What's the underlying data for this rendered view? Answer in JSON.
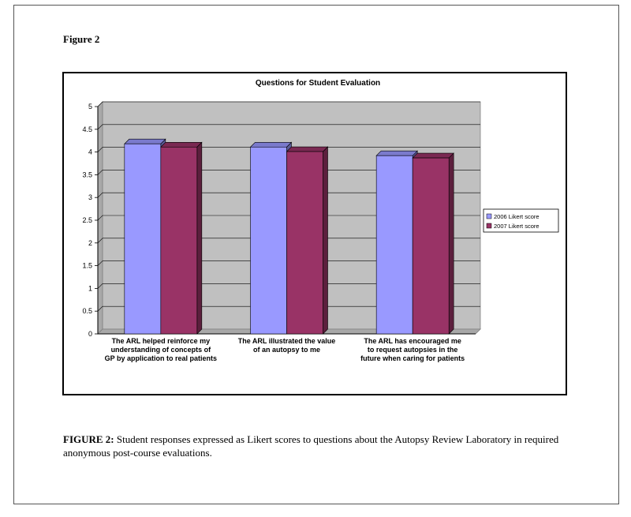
{
  "figure_label": "Figure 2",
  "caption": {
    "lead": "FIGURE 2:",
    "text": " Student responses expressed as Likert scores to questions about the Autopsy Review Laboratory in required anonymous post-course evaluations."
  },
  "colors": {
    "plot_bg": "#c0c0c0",
    "series_2006": "#9999ff",
    "series_2007": "#993366"
  },
  "chart_data": {
    "type": "bar",
    "title": "Questions for Student Evaluation",
    "xlabel": "",
    "ylabel": "",
    "ylim": [
      0,
      5
    ],
    "yticks": [
      "0",
      "0.5",
      "1",
      "1.5",
      "2",
      "2.5",
      "3",
      "3.5",
      "4",
      "4.5",
      "5"
    ],
    "grid": true,
    "legend_position": "right",
    "categories": [
      [
        "The ARL helped reinforce my",
        "understanding of concepts of",
        "GP by application to real patients"
      ],
      [
        "The ARL illustrated the value",
        "of an autopsy to me"
      ],
      [
        "The ARL has encouraged me",
        "to request autopsies in the",
        "future when caring for patients"
      ]
    ],
    "series": [
      {
        "name": "2006 Likert score",
        "values": [
          4.18,
          4.11,
          3.92
        ],
        "color": "#9999ff"
      },
      {
        "name": "2007 Likert score",
        "values": [
          4.11,
          4.01,
          3.87
        ],
        "color": "#993366"
      }
    ]
  }
}
